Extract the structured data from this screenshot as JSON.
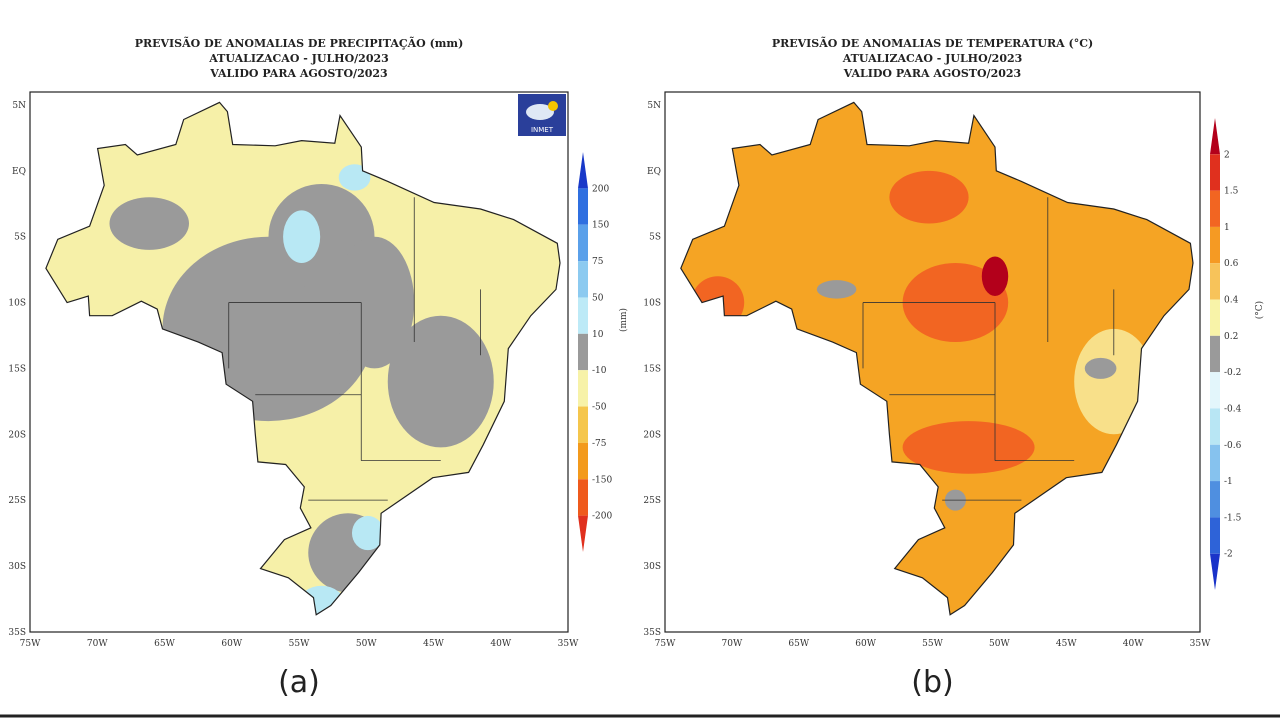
{
  "panels": [
    {
      "title": [
        "PREVISÃO DE ANOMALIAS DE PRECIPITAÇÃO (mm)",
        "ATUALIZACAO - JULHO/2023",
        "VALIDO PARA AGOSTO/2023"
      ],
      "lat_labels": [
        "5N",
        "EQ",
        "5S",
        "10S",
        "15S",
        "20S",
        "25S",
        "30S",
        "35S"
      ],
      "lon_labels": [
        "75W",
        "70W",
        "65W",
        "60W",
        "55W",
        "50W",
        "45W",
        "40W",
        "35W"
      ],
      "colorbar": {
        "labels": [
          "200",
          "150",
          "75",
          "50",
          "10",
          "-10",
          "-50",
          "-75",
          "-150",
          "-200"
        ],
        "unit": "(mm)"
      },
      "logo": "INMET",
      "caption": "(a)"
    },
    {
      "title": [
        "PREVISÃO DE ANOMALIAS DE TEMPERATURA (°C)",
        "ATUALIZACAO - JULHO/2023",
        "VALIDO PARA AGOSTO/2023"
      ],
      "lat_labels": [
        "5N",
        "EQ",
        "5S",
        "10S",
        "15S",
        "20S",
        "25S",
        "30S",
        "35S"
      ],
      "lon_labels": [
        "75W",
        "70W",
        "65W",
        "60W",
        "55W",
        "50W",
        "45W",
        "40W",
        "35W"
      ],
      "colorbar": {
        "labels": [
          "2",
          "1.5",
          "1",
          "0.6",
          "0.4",
          "0.2",
          "-0.2",
          "-0.4",
          "-0.6",
          "-1",
          "-1.5",
          "-2"
        ],
        "unit": "(°C)"
      },
      "caption": "(b)"
    }
  ]
}
